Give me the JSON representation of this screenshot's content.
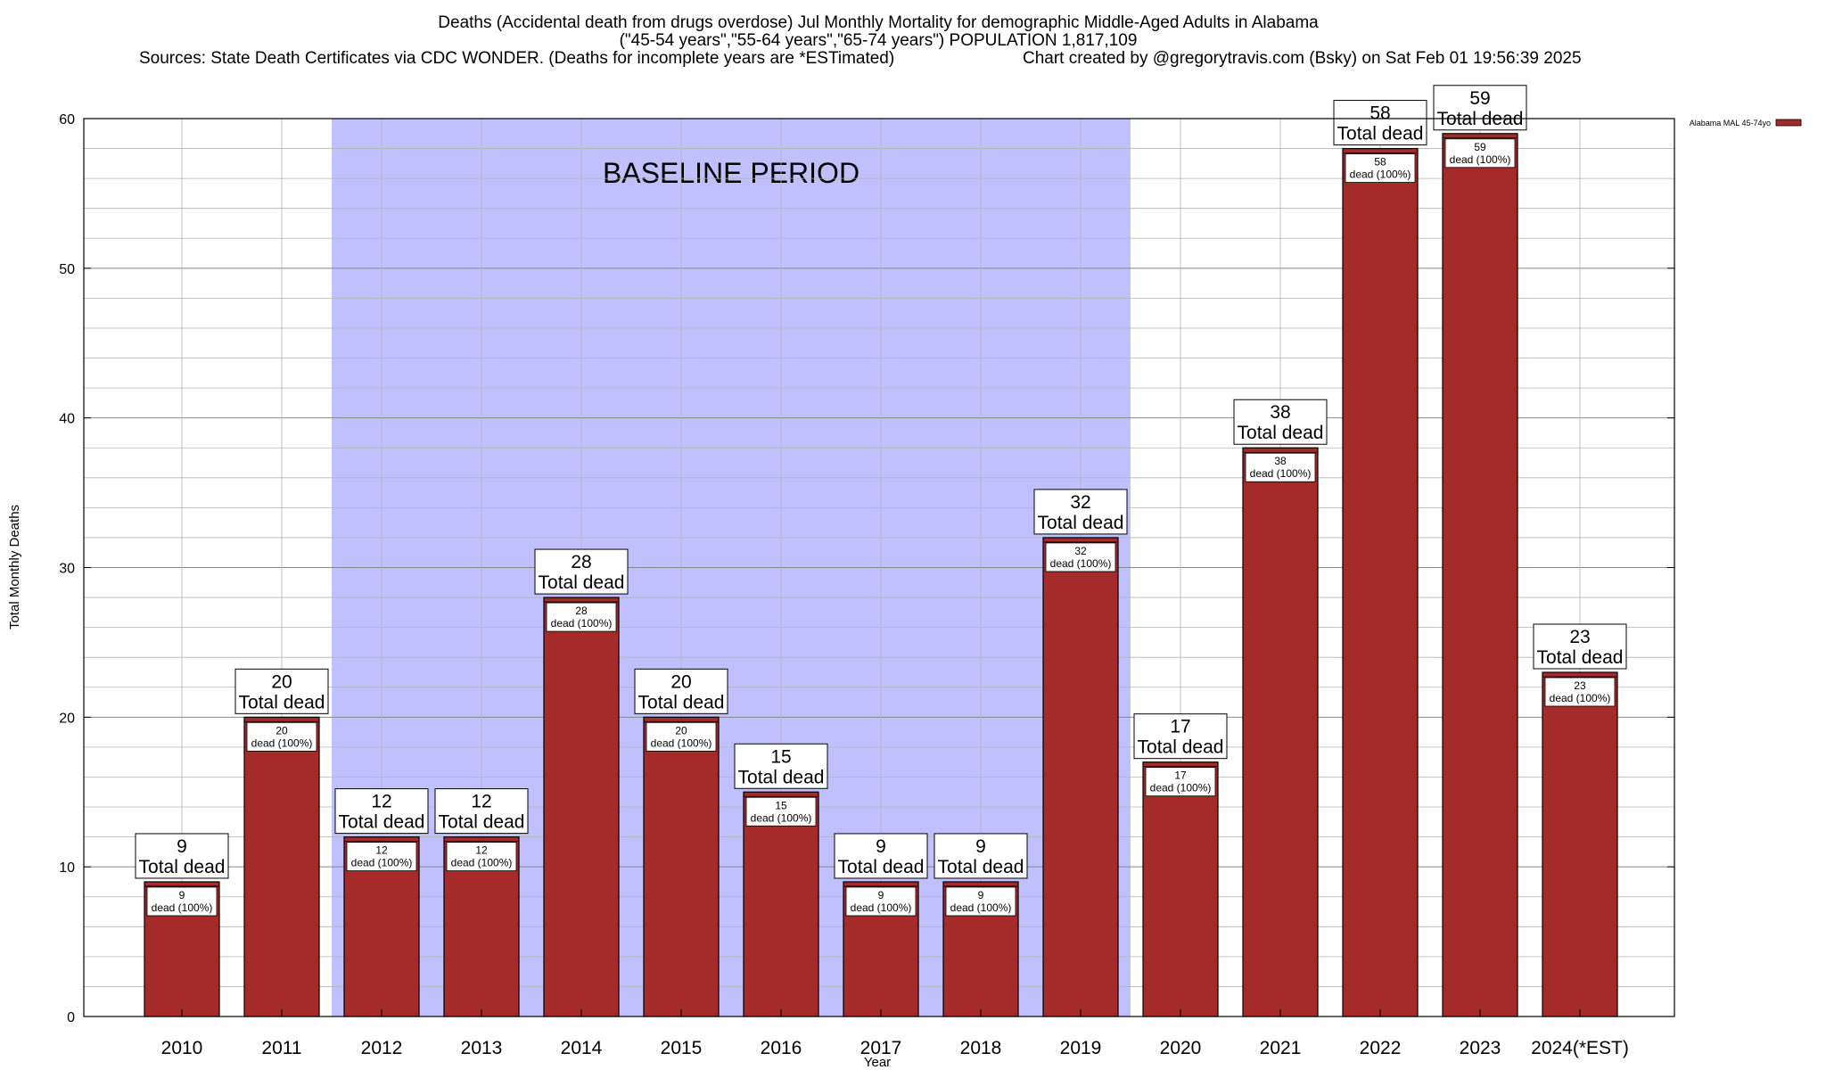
{
  "chart_data": {
    "type": "bar",
    "title_lines": [
      "Deaths (Accidental death from drugs overdose) Jul Monthly Mortality for demographic Middle-Aged Adults in Alabama",
      "(\"45-54 years\",\"55-64 years\",\"65-74 years\") POPULATION 1,817,109",
      "Sources: State Death Certificates via CDC WONDER. (Deaths for incomplete years are *ESTimated)"
    ],
    "credit": "Chart created by @gregorytravis.com (Bsky) on Sat Feb 01 19:56:39 2025",
    "xlabel": "Year",
    "ylabel": "Total Monthly Deaths",
    "ylim": [
      0,
      60
    ],
    "y_ticks": [
      0,
      10,
      20,
      30,
      40,
      50,
      60
    ],
    "grid": true,
    "legend_position": "top-right",
    "categories": [
      "2010",
      "2011",
      "2012",
      "2013",
      "2014",
      "2015",
      "2016",
      "2017",
      "2018",
      "2019",
      "2020",
      "2021",
      "2022",
      "2023",
      "2024(*EST)"
    ],
    "series": [
      {
        "name": "Alabama MAL 45-74yo",
        "color": "#a52a2a",
        "values": [
          9,
          20,
          12,
          12,
          28,
          20,
          15,
          9,
          9,
          32,
          17,
          38,
          58,
          59,
          23
        ]
      }
    ],
    "bar_labels": {
      "total_text": "Total dead",
      "inner_text": "dead (100%)"
    },
    "baseline": {
      "label": "BASELINE PERIOD",
      "start_category": "2012",
      "end_category": "2019",
      "color": "#c0c0ff"
    }
  }
}
